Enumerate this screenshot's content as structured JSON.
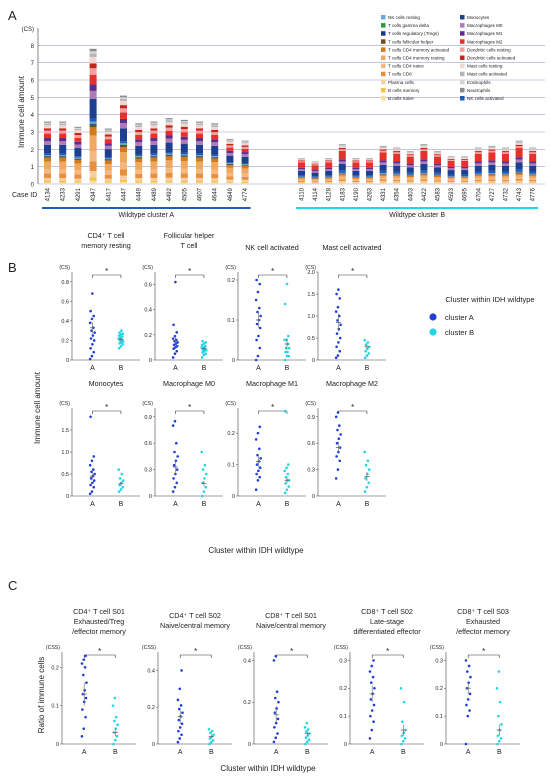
{
  "panels": {
    "a": "A",
    "b": "B",
    "c": "C"
  },
  "chart_data": [
    {
      "id": "A",
      "type": "bar",
      "stacked": true,
      "ylabel": "Immune cell amount",
      "yunit": "(CS)",
      "ylim": [
        0,
        9
      ],
      "yticks": [
        0,
        1,
        2,
        3,
        4,
        5,
        6,
        7,
        8
      ],
      "grid": true,
      "legend_position": "top-right",
      "case_label": "Case ID",
      "groups": [
        {
          "name": "Wildtype cluster A",
          "color": "#1f5bb8",
          "cases": [
            "4134",
            "4233",
            "4291",
            "4347",
            "4417",
            "4447",
            "4449",
            "4489",
            "4492",
            "4505",
            "4607",
            "4644",
            "4649",
            "4774"
          ],
          "totals": [
            3.6,
            3.6,
            3.3,
            7.8,
            3.2,
            5.1,
            3.5,
            3.6,
            3.8,
            3.7,
            3.6,
            3.5,
            2.6,
            2.5
          ]
        },
        {
          "name": "Wildtype cluster B",
          "color": "#22d4e6",
          "cases": [
            "4110",
            "4114",
            "4128",
            "4183",
            "4190",
            "4263",
            "4331",
            "4354",
            "4403",
            "4422",
            "4583",
            "4593",
            "4695",
            "4704",
            "4727",
            "4732",
            "4743",
            "4776"
          ],
          "totals": [
            1.5,
            1.3,
            1.5,
            2.3,
            1.5,
            1.5,
            2.2,
            2.1,
            1.9,
            2.3,
            1.9,
            1.6,
            1.6,
            2.1,
            2.2,
            2.1,
            2.5,
            2.1
          ]
        }
      ],
      "series": [
        {
          "name": "Monocytes",
          "color": "#1c3f8f"
        },
        {
          "name": "Macrophages M0",
          "color": "#b07ab8"
        },
        {
          "name": "Macrophages M1",
          "color": "#5b2d8e"
        },
        {
          "name": "Macrophages M2",
          "color": "#e8302a"
        },
        {
          "name": "Dendritic cells resting",
          "color": "#f5a0a0"
        },
        {
          "name": "Dendritic cells activated",
          "color": "#c0261c"
        },
        {
          "name": "Mast cells resting",
          "color": "#f2d6d6"
        },
        {
          "name": "Mast cells activated",
          "color": "#b5b5b5"
        },
        {
          "name": "Eosinophils",
          "color": "#d4d4d4"
        },
        {
          "name": "Neutrophils",
          "color": "#8c8c8c"
        },
        {
          "name": "NK cells activated",
          "color": "#1f5bb8"
        },
        {
          "name": "NK cells resting",
          "color": "#6ea4e0"
        },
        {
          "name": "T cells gamma delta",
          "color": "#2a9b3e"
        },
        {
          "name": "T cells regulatory (Tregs)",
          "color": "#1b3a8a"
        },
        {
          "name": "T cells follicular helper",
          "color": "#7b4a1e"
        },
        {
          "name": "T cells CD4 memory activated",
          "color": "#d47a1a"
        },
        {
          "name": "T cells CD4 memory resting",
          "color": "#f0a860"
        },
        {
          "name": "T cells CD4 naive",
          "color": "#f4b880"
        },
        {
          "name": "T cells CD8",
          "color": "#e89040"
        },
        {
          "name": "Plasma cells",
          "color": "#f7cfa0"
        },
        {
          "name": "B cells memory",
          "color": "#f2c34a"
        },
        {
          "name": "B cells naive",
          "color": "#f9dfa0"
        }
      ]
    },
    {
      "id": "B",
      "type": "scatter",
      "ylabel": "Immune cell amount",
      "xlabel": "Cluster within IDH wildtype",
      "legend_title": "Cluster within IDH wildtype",
      "groups": [
        "A",
        "B"
      ],
      "legend": [
        {
          "name": "cluster A",
          "color": "#1f3fd6"
        },
        {
          "name": "cluster B",
          "color": "#22d4e6"
        }
      ],
      "significance": "*",
      "unit": "(CS)",
      "subplots": [
        {
          "title": [
            "CD4⁺ T cell",
            "memory resting"
          ],
          "ylim": [
            0,
            0.9
          ],
          "ticks": [
            "0",
            "0.2",
            "0.4",
            "0.6",
            "0.8"
          ],
          "tickv": [
            0,
            0.2,
            0.4,
            0.6,
            0.8
          ],
          "a": [
            0.01,
            0.04,
            0.08,
            0.12,
            0.16,
            0.2,
            0.22,
            0.25,
            0.28,
            0.3,
            0.33,
            0.38,
            0.42,
            0.45,
            0.5,
            0.68
          ],
          "b": [
            0.12,
            0.14,
            0.16,
            0.17,
            0.18,
            0.19,
            0.2,
            0.21,
            0.22,
            0.23,
            0.24,
            0.25,
            0.26,
            0.27,
            0.28,
            0.3
          ],
          "ma": 0.33,
          "sa": 0.06,
          "mb": 0.21,
          "sb": 0.02
        },
        {
          "title": [
            "Follicular helper",
            "T cell"
          ],
          "ylim": [
            0,
            0.7
          ],
          "ticks": [
            "0",
            "0.2",
            "0.4",
            "0.6"
          ],
          "tickv": [
            0,
            0.2,
            0.4,
            0.6
          ],
          "a": [
            0.02,
            0.05,
            0.07,
            0.09,
            0.1,
            0.11,
            0.12,
            0.13,
            0.14,
            0.15,
            0.16,
            0.17,
            0.19,
            0.22,
            0.28,
            0.62
          ],
          "b": [
            0.02,
            0.04,
            0.05,
            0.06,
            0.07,
            0.08,
            0.08,
            0.09,
            0.1,
            0.1,
            0.11,
            0.12,
            0.13,
            0.14,
            0.15
          ],
          "ma": 0.15,
          "sa": 0.04,
          "mb": 0.09,
          "sb": 0.01
        },
        {
          "title": [
            "NK cell activated"
          ],
          "ylim": [
            0,
            0.22
          ],
          "ticks": [
            "0",
            "0.1",
            "0.2"
          ],
          "tickv": [
            0,
            0.1,
            0.2
          ],
          "a": [
            0.0,
            0.01,
            0.03,
            0.05,
            0.06,
            0.08,
            0.09,
            0.1,
            0.11,
            0.12,
            0.13,
            0.15,
            0.17,
            0.19,
            0.2
          ],
          "b": [
            0.0,
            0.01,
            0.01,
            0.02,
            0.02,
            0.03,
            0.03,
            0.04,
            0.05,
            0.05,
            0.06,
            0.14,
            0.19
          ],
          "ma": 0.1,
          "sa": 0.02,
          "mb": 0.04,
          "sb": 0.015
        },
        {
          "title": [
            "Mast cell activated"
          ],
          "ylim": [
            0,
            2.0
          ],
          "ticks": [
            "0",
            "0.5",
            "1.0",
            "1.5",
            "2.0"
          ],
          "tickv": [
            0,
            0.5,
            1.0,
            1.5,
            2.0
          ],
          "a": [
            0.05,
            0.1,
            0.2,
            0.3,
            0.4,
            0.5,
            0.6,
            0.7,
            0.8,
            0.9,
            1.0,
            1.1,
            1.2,
            1.4,
            1.5,
            1.6
          ],
          "b": [
            0.05,
            0.1,
            0.15,
            0.2,
            0.25,
            0.3,
            0.35,
            0.4,
            0.45
          ],
          "ma": 0.85,
          "sa": 0.2,
          "mb": 0.3,
          "sb": 0.05
        },
        {
          "title": [
            "Monocytes"
          ],
          "ylim": [
            0,
            2.0
          ],
          "ticks": [
            "0",
            "0.5",
            "1.0",
            "1.5"
          ],
          "tickv": [
            0,
            0.5,
            1.0,
            1.5
          ],
          "a": [
            0.05,
            0.1,
            0.2,
            0.25,
            0.3,
            0.35,
            0.4,
            0.45,
            0.5,
            0.55,
            0.6,
            0.7,
            0.8,
            0.9,
            1.8
          ],
          "b": [
            0.1,
            0.15,
            0.2,
            0.25,
            0.3,
            0.35,
            0.4,
            0.5,
            0.6
          ],
          "ma": 0.45,
          "sa": 0.08,
          "mb": 0.28,
          "sb": 0.04
        },
        {
          "title": [
            "Macrophage M0"
          ],
          "ylim": [
            0,
            1.0
          ],
          "ticks": [
            "0",
            "0.3",
            "0.6",
            "0.9"
          ],
          "tickv": [
            0,
            0.3,
            0.6,
            0.9
          ],
          "a": [
            0.05,
            0.1,
            0.15,
            0.2,
            0.25,
            0.3,
            0.35,
            0.4,
            0.45,
            0.5,
            0.6,
            0.8,
            0.85
          ],
          "b": [
            0.0,
            0.05,
            0.1,
            0.15,
            0.2,
            0.25,
            0.3,
            0.35,
            0.5
          ],
          "ma": 0.33,
          "sa": 0.08,
          "mb": 0.14,
          "sb": 0.03
        },
        {
          "title": [
            "Macrophage M1"
          ],
          "ylim": [
            0,
            0.28
          ],
          "ticks": [
            "0",
            "0.1",
            "0.2"
          ],
          "tickv": [
            0,
            0.1,
            0.2
          ],
          "a": [
            0.02,
            0.05,
            0.06,
            0.07,
            0.08,
            0.09,
            0.1,
            0.11,
            0.12,
            0.13,
            0.15,
            0.18,
            0.2,
            0.22
          ],
          "b": [
            0.01,
            0.02,
            0.03,
            0.04,
            0.05,
            0.05,
            0.06,
            0.07,
            0.08,
            0.09,
            0.1,
            0.27
          ],
          "ma": 0.11,
          "sa": 0.02,
          "mb": 0.05,
          "sb": 0.01
        },
        {
          "title": [
            "Macrophage M2"
          ],
          "ylim": [
            0,
            1.0
          ],
          "ticks": [
            "0",
            "0.3",
            "0.6",
            "0.9"
          ],
          "tickv": [
            0,
            0.3,
            0.6,
            0.9
          ],
          "a": [
            0.2,
            0.3,
            0.4,
            0.45,
            0.5,
            0.55,
            0.6,
            0.65,
            0.7,
            0.75,
            0.8,
            0.9,
            0.95
          ],
          "b": [
            0.05,
            0.1,
            0.15,
            0.2,
            0.25,
            0.3,
            0.35,
            0.4,
            0.5
          ],
          "ma": 0.55,
          "sa": 0.07,
          "mb": 0.22,
          "sb": 0.05
        }
      ]
    },
    {
      "id": "C",
      "type": "scatter",
      "ylabel": "Ratio of immune cells",
      "xlabel": "Cluster within IDH wildtype",
      "groups": [
        "A",
        "B"
      ],
      "significance": "*",
      "unit": "(CSS)",
      "subplots": [
        {
          "title": [
            "CD4⁺ T cell S01",
            "Exhausted/Treg",
            "/effector memory"
          ],
          "ylim": [
            0,
            0.24
          ],
          "ticks": [
            "0",
            "0.1",
            "0.2"
          ],
          "tickv": [
            0,
            0.1,
            0.2
          ],
          "a": [
            0.02,
            0.04,
            0.07,
            0.09,
            0.11,
            0.12,
            0.13,
            0.14,
            0.16,
            0.18,
            0.2,
            0.21,
            0.22,
            0.23
          ],
          "b": [
            0.0,
            0.01,
            0.02,
            0.03,
            0.04,
            0.05,
            0.06,
            0.07,
            0.1,
            0.12
          ],
          "ma": 0.13,
          "sa": 0.03,
          "mb": 0.03,
          "sb": 0.01
        },
        {
          "title": [
            "CD4⁺ T cell S02",
            "Naive/central memory"
          ],
          "ylim": [
            0,
            0.5
          ],
          "ticks": [
            "0",
            "0.2",
            "0.4"
          ],
          "tickv": [
            0,
            0.2,
            0.4
          ],
          "a": [
            0.01,
            0.03,
            0.05,
            0.07,
            0.09,
            0.11,
            0.13,
            0.15,
            0.17,
            0.19,
            0.21,
            0.24,
            0.3,
            0.4
          ],
          "b": [
            0.0,
            0.01,
            0.02,
            0.03,
            0.04,
            0.05,
            0.06,
            0.07,
            0.08
          ],
          "ma": 0.15,
          "sa": 0.04,
          "mb": 0.04,
          "sb": 0.01
        },
        {
          "title": [
            "CD8⁺ T cell S01",
            "Naive/central memory"
          ],
          "ylim": [
            0,
            0.44
          ],
          "ticks": [
            "0",
            "0.2",
            "0.4"
          ],
          "tickv": [
            0,
            0.2,
            0.4
          ],
          "a": [
            0.01,
            0.03,
            0.05,
            0.08,
            0.1,
            0.12,
            0.15,
            0.17,
            0.2,
            0.22,
            0.25,
            0.4,
            0.42
          ],
          "b": [
            0.0,
            0.01,
            0.02,
            0.03,
            0.04,
            0.05,
            0.06,
            0.07,
            0.08,
            0.1
          ],
          "ma": 0.14,
          "sa": 0.04,
          "mb": 0.05,
          "sb": 0.01
        },
        {
          "title": [
            "CD8⁺ T cell S02",
            "Late-stage",
            "differentiated effector"
          ],
          "ylim": [
            0,
            0.33
          ],
          "ticks": [
            "0",
            "0.1",
            "0.2",
            "0.3"
          ],
          "tickv": [
            0,
            0.1,
            0.2,
            0.3
          ],
          "a": [
            0.02,
            0.05,
            0.08,
            0.1,
            0.12,
            0.14,
            0.16,
            0.18,
            0.2,
            0.22,
            0.24,
            0.26,
            0.28,
            0.3
          ],
          "b": [
            0.0,
            0.01,
            0.02,
            0.03,
            0.04,
            0.05,
            0.08,
            0.15,
            0.2
          ],
          "ma": 0.18,
          "sa": 0.03,
          "mb": 0.05,
          "sb": 0.02
        },
        {
          "title": [
            "CD8⁺ T cell S03",
            "Exhausted",
            "/effector memory"
          ],
          "ylim": [
            0,
            0.33
          ],
          "ticks": [
            "0",
            "0.1",
            "0.2",
            "0.3"
          ],
          "tickv": [
            0,
            0.1,
            0.2,
            0.3
          ],
          "a": [
            0.0,
            0.1,
            0.12,
            0.14,
            0.16,
            0.18,
            0.2,
            0.22,
            0.24,
            0.26,
            0.28,
            0.3
          ],
          "b": [
            0.0,
            0.01,
            0.02,
            0.03,
            0.05,
            0.07,
            0.1,
            0.15,
            0.2,
            0.26
          ],
          "ma": 0.2,
          "sa": 0.02,
          "mb": 0.05,
          "sb": 0.02
        }
      ]
    }
  ]
}
